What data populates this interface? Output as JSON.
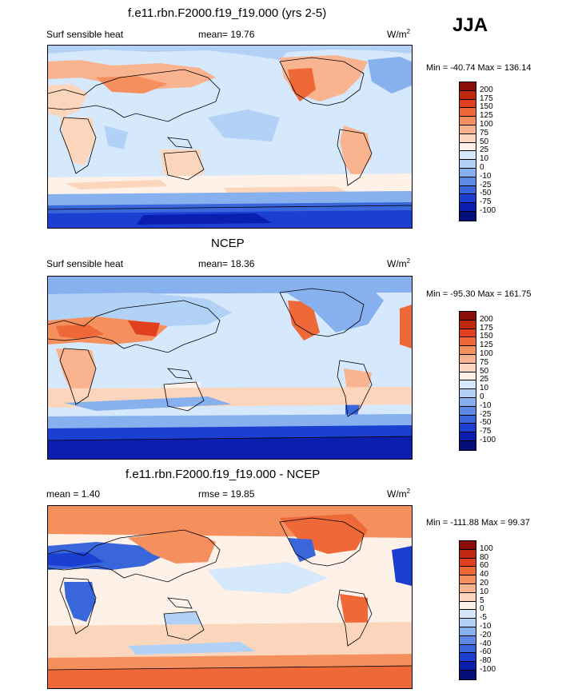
{
  "season": "JJA",
  "panels": [
    {
      "title": "f.e11.rbn.F2000.f19_f19.000 (yrs 2-5)",
      "left_label": "Surf sensible heat",
      "mid_label": "mean=  19.76",
      "units": "W/m",
      "units_sup": "2",
      "minmax": "Min = -40.74 Max = 136.14",
      "levels": [
        "200",
        "175",
        "150",
        "125",
        "100",
        "75",
        "50",
        "25",
        "10",
        "0",
        "-10",
        "-25",
        "-50",
        "-75",
        "-100"
      ],
      "colors": [
        "#8b0d07",
        "#c0270f",
        "#e0401d",
        "#ee6838",
        "#f58f5d",
        "#f9b38f",
        "#fcd6bc",
        "#fdf1e8",
        "#d6e8fb",
        "#b2d1f6",
        "#87b0ee",
        "#5d8ae5",
        "#3a66dc",
        "#1b3fd0",
        "#0a1eb0",
        "#050f7c"
      ],
      "chart_data": {
        "type": "heatmap",
        "title": "f.e11.rbn.F2000.f19_f19.000 (yrs 2-5)",
        "variable": "Surf sensible heat",
        "mean": 19.76,
        "min": -40.74,
        "max": 136.14,
        "units": "W/m2",
        "contour_levels": [
          -100,
          -75,
          -50,
          -25,
          -10,
          0,
          10,
          25,
          50,
          75,
          100,
          125,
          150,
          175,
          200
        ],
        "background_level": "0 to 10"
      }
    },
    {
      "title": "NCEP",
      "left_label": "Surf sensible heat",
      "mid_label": "mean=  18.36",
      "units": "W/m",
      "units_sup": "2",
      "minmax": "Min = -95.30 Max = 161.75",
      "levels": [
        "200",
        "175",
        "150",
        "125",
        "100",
        "75",
        "50",
        "25",
        "10",
        "0",
        "-10",
        "-25",
        "-50",
        "-75",
        "-100"
      ],
      "colors": [
        "#8b0d07",
        "#c0270f",
        "#e0401d",
        "#ee6838",
        "#f58f5d",
        "#f9b38f",
        "#fcd6bc",
        "#fdf1e8",
        "#d6e8fb",
        "#b2d1f6",
        "#87b0ee",
        "#5d8ae5",
        "#3a66dc",
        "#1b3fd0",
        "#0a1eb0",
        "#050f7c"
      ],
      "chart_data": {
        "type": "heatmap",
        "title": "NCEP",
        "variable": "Surf sensible heat",
        "mean": 18.36,
        "min": -95.3,
        "max": 161.75,
        "units": "W/m2",
        "contour_levels": [
          -100,
          -75,
          -50,
          -25,
          -10,
          0,
          10,
          25,
          50,
          75,
          100,
          125,
          150,
          175,
          200
        ],
        "background_level": "0 to 10"
      }
    },
    {
      "title": "f.e11.rbn.F2000.f19_f19.000 - NCEP",
      "left_label": "mean =   1.40",
      "mid_label": "rmse =  19.85",
      "units": "W/m",
      "units_sup": "2",
      "minmax": "Min = -111.88 Max =  99.37",
      "levels": [
        "100",
        "80",
        "60",
        "40",
        "20",
        "10",
        "5",
        "0",
        "-5",
        "-10",
        "-20",
        "-40",
        "-60",
        "-80",
        "-100"
      ],
      "colors": [
        "#8b0d07",
        "#c0270f",
        "#e0401d",
        "#ee6838",
        "#f58f5d",
        "#f9b38f",
        "#fcd6bc",
        "#fdf1e8",
        "#d6e8fb",
        "#b2d1f6",
        "#87b0ee",
        "#5d8ae5",
        "#3a66dc",
        "#1b3fd0",
        "#0a1eb0",
        "#050f7c"
      ],
      "chart_data": {
        "type": "heatmap",
        "title": "f.e11.rbn.F2000.f19_f19.000 - NCEP",
        "mean": 1.4,
        "rmse": 19.85,
        "min": -111.88,
        "max": 99.37,
        "units": "W/m2",
        "contour_levels": [
          -100,
          -80,
          -60,
          -40,
          -20,
          -10,
          -5,
          0,
          5,
          10,
          20,
          40,
          60,
          80,
          100
        ],
        "background_level": "0 to 5"
      }
    }
  ]
}
